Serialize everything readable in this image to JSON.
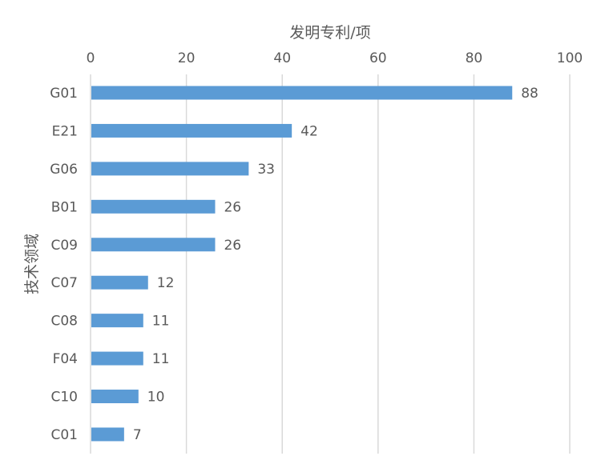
{
  "chart_data": {
    "type": "bar",
    "orientation": "horizontal",
    "categories": [
      "G01",
      "E21",
      "G06",
      "B01",
      "C09",
      "C07",
      "C08",
      "F04",
      "C10",
      "C01"
    ],
    "series": [
      {
        "values": [
          88,
          42,
          33,
          26,
          26,
          12,
          11,
          11,
          10,
          7
        ],
        "color": "#5b9bd5"
      }
    ],
    "xlabel": "发明专利/项",
    "ylabel": "技术领域",
    "xlim": [
      0,
      100
    ],
    "xticks": [
      0,
      20,
      40,
      60,
      80,
      100
    ],
    "x_axis_position": "top",
    "grid": true,
    "data_labels": true,
    "legend": "none"
  }
}
